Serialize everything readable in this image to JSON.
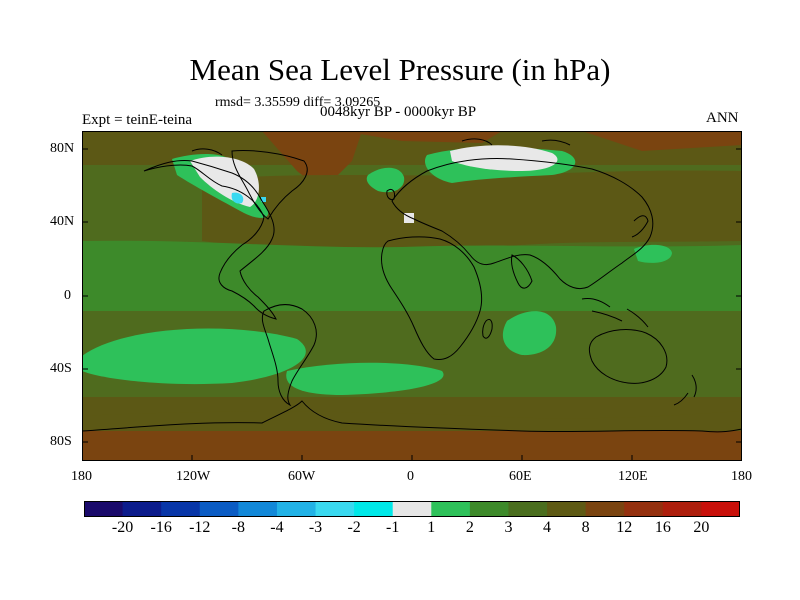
{
  "title": "Mean Sea Level Pressure (in hPa)",
  "stats": "rmsd= 3.35599 diff= 3.09265",
  "period": "0048kyr BP - 0000kyr BP",
  "experiment": "Expt = teinE-teina",
  "season": "ANN",
  "lat_labels": [
    "80N",
    "40N",
    "0",
    "40S",
    "80S"
  ],
  "lon_labels": [
    "180",
    "120W",
    "60W",
    "0",
    "60E",
    "120E",
    "180"
  ],
  "colorbar": {
    "colors": [
      "#1a0a6b",
      "#0c1c8c",
      "#0836a8",
      "#0b5cc4",
      "#1288d8",
      "#22b2e6",
      "#3ad9f0",
      "#00e8e8",
      "#e6e6e6",
      "#2ec15a",
      "#3d8a2a",
      "#4a6e1e",
      "#5e5a14",
      "#7a4410",
      "#94300e",
      "#ad1e0c",
      "#c8100a"
    ],
    "labels": [
      "-20",
      "-16",
      "-12",
      "-8",
      "-4",
      "-3",
      "-2",
      "-1",
      "1",
      "2",
      "3",
      "4",
      "8",
      "12",
      "16",
      "20"
    ]
  },
  "palette": {
    "base": "#4f6b1e",
    "olive_dark": "#5c5815",
    "brown": "#7a4410",
    "green_light": "#2ec15a",
    "mid_green": "#3d8a2a",
    "white": "#e8e8e8",
    "cyan": "#3ad9f0"
  }
}
